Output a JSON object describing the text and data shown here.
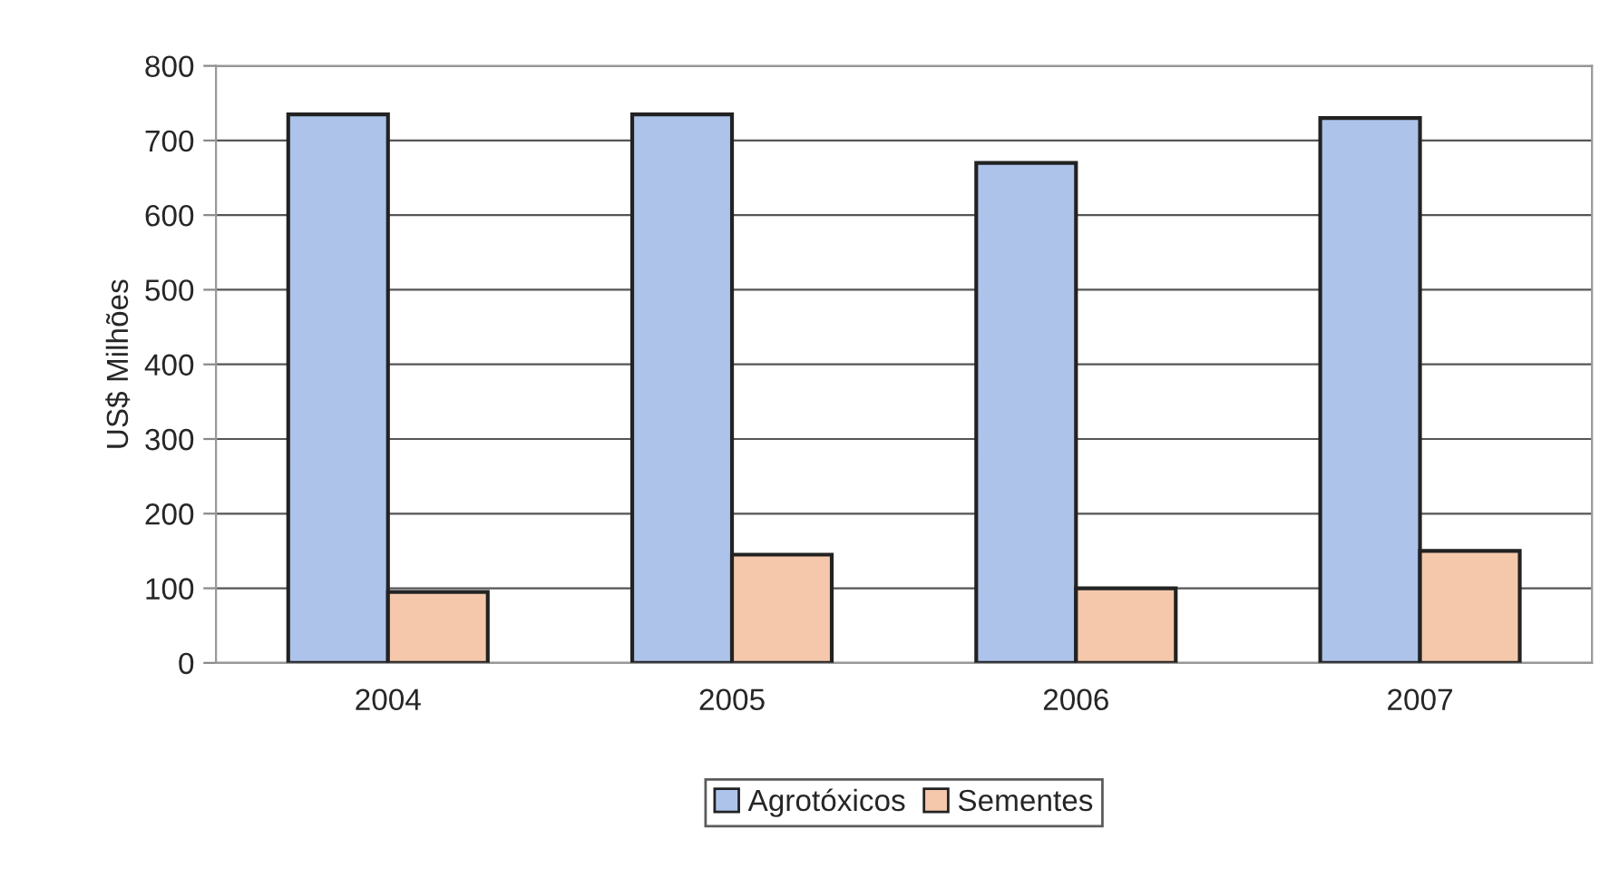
{
  "chart_data": {
    "type": "bar",
    "ylabel": "US$ Milhões",
    "categories": [
      "2004",
      "2005",
      "2006",
      "2007"
    ],
    "series": [
      {
        "name": "Agrotóxicos",
        "color": "#aec3ea",
        "values": [
          735,
          735,
          670,
          730
        ]
      },
      {
        "name": "Sementes",
        "color": "#f5c8ac",
        "values": [
          95,
          145,
          100,
          150
        ]
      }
    ],
    "ylim": [
      0,
      800
    ],
    "yticks": [
      0,
      100,
      200,
      300,
      400,
      500,
      600,
      700,
      800
    ],
    "grid": "y",
    "legend": "bottom"
  }
}
